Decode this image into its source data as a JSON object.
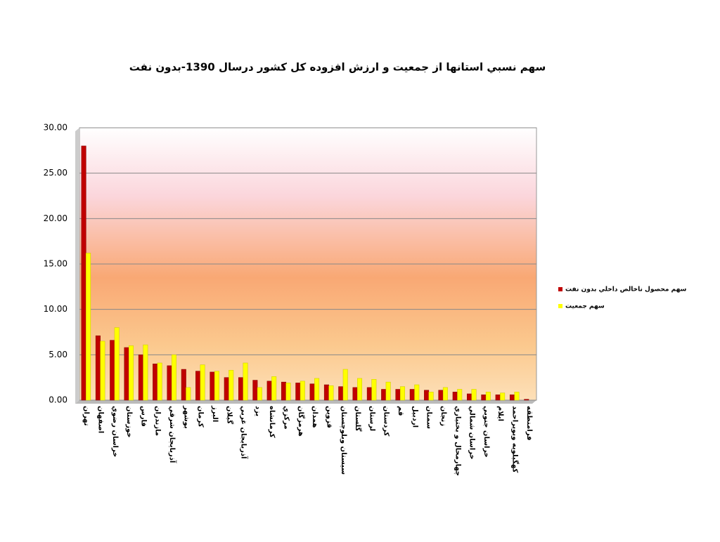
{
  "chart_data": {
    "type": "bar",
    "title": "سهم نسبي استانها از جمعيت و ارزش افزوده کل کشور درسال 1390-بدون نفت",
    "categories": [
      "تهران",
      "اصفهان",
      "خراسان رضوي",
      "خوزستان",
      "فارس",
      "مازندران",
      "آذربايجان شرقي",
      "بوشهر",
      "کرمان",
      "البرز",
      "گيلان",
      "آذربايجان غربي",
      "يزد",
      "کرمانشاه",
      "مرکزي",
      "هرمزگان",
      "همدان",
      "قزوين",
      "سيستان وبلوچستان",
      "گلستان",
      "لرستان",
      "کردستان",
      "قم",
      "اردبيل",
      "سمنان",
      "زنجان",
      "چهارمحال و بختياري",
      "خراسان شمالي",
      "خراسان جنوبي",
      "ايلام",
      "کهگيلويه وبويراحمد",
      "فرامنطقه"
    ],
    "series": [
      {
        "name": "سهم محصول ناخالص داخلي بدون نفت",
        "color": "#c00000",
        "values": [
          28.0,
          7.1,
          6.6,
          5.8,
          5.0,
          4.0,
          3.8,
          3.4,
          3.2,
          3.1,
          2.5,
          2.5,
          2.2,
          2.1,
          2.0,
          1.9,
          1.8,
          1.7,
          1.5,
          1.4,
          1.4,
          1.2,
          1.2,
          1.2,
          1.1,
          1.1,
          0.9,
          0.7,
          0.6,
          0.6,
          0.6,
          0.1
        ]
      },
      {
        "name": "سهم جمعيت",
        "color": "#ffff00",
        "values": [
          16.2,
          6.5,
          8.0,
          6.0,
          6.1,
          4.1,
          5.0,
          1.4,
          3.9,
          3.2,
          3.3,
          4.1,
          1.4,
          2.6,
          1.9,
          2.1,
          2.4,
          1.6,
          3.4,
          2.4,
          2.3,
          2.0,
          1.5,
          1.7,
          0.9,
          1.4,
          1.2,
          1.2,
          0.9,
          0.8,
          0.9,
          0
        ]
      }
    ],
    "ylim": [
      0,
      30
    ],
    "yticks": [
      {
        "value": 0,
        "label": "0.00"
      },
      {
        "value": 5,
        "label": "5.00"
      },
      {
        "value": 10,
        "label": "10.00"
      },
      {
        "value": 15,
        "label": "15.00"
      },
      {
        "value": 20,
        "label": "20.00"
      },
      {
        "value": 25,
        "label": "25.00"
      },
      {
        "value": 30,
        "label": "30.00"
      }
    ],
    "grid": true,
    "legend": "right"
  }
}
